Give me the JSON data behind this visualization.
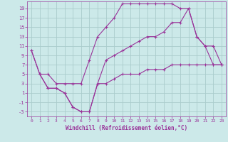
{
  "background_color": "#cce9e9",
  "grid_color": "#aacccc",
  "line_color": "#993399",
  "xlim": [
    -0.5,
    23.5
  ],
  "ylim": [
    -4,
    20.5
  ],
  "xticks": [
    0,
    1,
    2,
    3,
    4,
    5,
    6,
    7,
    8,
    9,
    10,
    11,
    12,
    13,
    14,
    15,
    16,
    17,
    18,
    19,
    20,
    21,
    22,
    23
  ],
  "yticks": [
    -3,
    -1,
    1,
    3,
    5,
    7,
    9,
    11,
    13,
    15,
    17,
    19
  ],
  "xlabel": "Windchill (Refroidissement éolien,°C)",
  "series": [
    {
      "x": [
        0,
        1,
        2,
        3,
        4,
        5,
        6,
        7,
        8,
        9,
        10,
        11,
        12,
        13,
        14,
        15,
        16,
        17,
        18,
        19,
        20,
        21,
        22,
        23
      ],
      "y": [
        10,
        5,
        5,
        3,
        3,
        3,
        3,
        8,
        13,
        15,
        17,
        20,
        20,
        20,
        20,
        20,
        20,
        20,
        19,
        19,
        13,
        11,
        7,
        7
      ]
    },
    {
      "x": [
        0,
        1,
        2,
        3,
        4,
        5,
        6,
        7,
        8,
        9,
        10,
        11,
        12,
        13,
        14,
        15,
        16,
        17,
        18,
        19,
        20,
        21,
        22,
        23
      ],
      "y": [
        10,
        5,
        2,
        2,
        1,
        -2,
        -3,
        -3,
        3,
        8,
        9,
        10,
        11,
        12,
        13,
        13,
        14,
        16,
        16,
        19,
        13,
        11,
        11,
        7
      ]
    },
    {
      "x": [
        1,
        2,
        3,
        4,
        5,
        6,
        7,
        8,
        9,
        10,
        11,
        12,
        13,
        14,
        15,
        16,
        17,
        18,
        19,
        20,
        21,
        22,
        23
      ],
      "y": [
        5,
        2,
        2,
        1,
        -2,
        -3,
        -3,
        3,
        3,
        4,
        5,
        5,
        5,
        6,
        6,
        6,
        7,
        7,
        7,
        7,
        7,
        7,
        7
      ]
    }
  ]
}
